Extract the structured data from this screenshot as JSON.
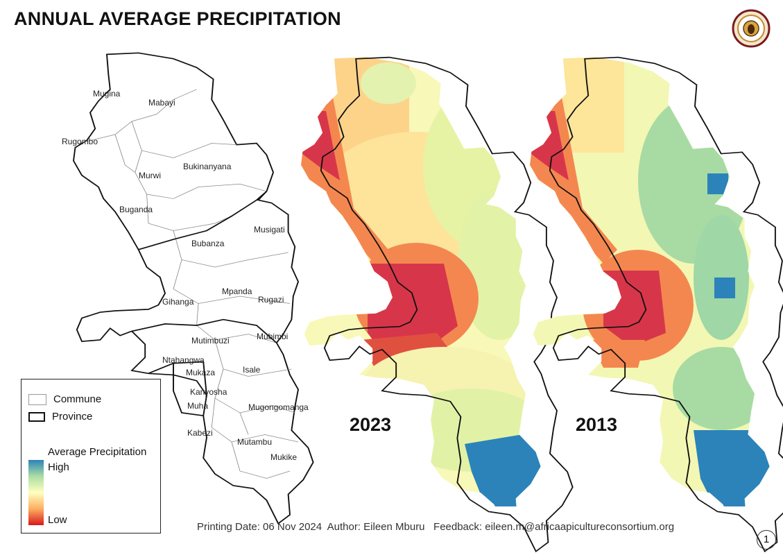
{
  "title": "ANNUAL AVERAGE PRECIPITATION",
  "logo_icon": "consortium-seal-icon",
  "communes": [
    {
      "name": "Mugina"
    },
    {
      "name": "Mabayi"
    },
    {
      "name": "Rugombo"
    },
    {
      "name": "Bukinanyana"
    },
    {
      "name": "Murwi"
    },
    {
      "name": "Buganda"
    },
    {
      "name": "Musigati"
    },
    {
      "name": "Bubanza"
    },
    {
      "name": "Gihanga"
    },
    {
      "name": "Mpanda"
    },
    {
      "name": "Rugazi"
    },
    {
      "name": "Mutimbuzi"
    },
    {
      "name": "Mubimbi"
    },
    {
      "name": "Ntahangwa"
    },
    {
      "name": "Mukaza"
    },
    {
      "name": "Isale"
    },
    {
      "name": "Kanyosha"
    },
    {
      "name": "Muha"
    },
    {
      "name": "Mugongomanga"
    },
    {
      "name": "Kabezi"
    },
    {
      "name": "Mutambu"
    },
    {
      "name": "Mukike"
    }
  ],
  "maps": {
    "map_2023": {
      "year": "2023"
    },
    "map_2013": {
      "year": "2013"
    }
  },
  "legend": {
    "commune_label": "Commune",
    "province_label": "Province",
    "title": "Average Precipitation",
    "high": "High",
    "low": "Low",
    "ramp_colors": [
      "#2b83ba",
      "#abdda4",
      "#ffffbf",
      "#fdae61",
      "#d7191c"
    ]
  },
  "footer": {
    "text": "Printing Date: 06 Nov 2024  Author: Eileen Mburu   Feedback: eileen.m@africaapicultureconsortium.org"
  },
  "page_number": "1"
}
